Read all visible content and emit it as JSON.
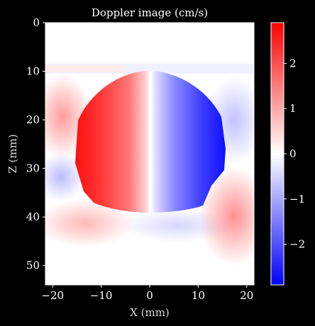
{
  "chart_data": {
    "type": "heatmap",
    "title": "Doppler image (cm/s)",
    "xlabel": "X (mm)",
    "ylabel": "Z (mm)",
    "xlim": [
      -21.5,
      21.5
    ],
    "ylim": [
      0,
      54
    ],
    "y_inverted": true,
    "xticks": [
      {
        "value": -20,
        "label": "−20"
      },
      {
        "value": -10,
        "label": "−10"
      },
      {
        "value": 0,
        "label": "0"
      },
      {
        "value": 10,
        "label": "10"
      },
      {
        "value": 20,
        "label": "20"
      }
    ],
    "yticks": [
      {
        "value": 0,
        "label": "0"
      },
      {
        "value": 10,
        "label": "10"
      },
      {
        "value": 20,
        "label": "20"
      },
      {
        "value": 30,
        "label": "30"
      },
      {
        "value": 40,
        "label": "40"
      },
      {
        "value": 50,
        "label": "50"
      }
    ],
    "colorbar": {
      "vmin": -2.9,
      "vmax": 2.9,
      "colormap": "bwr",
      "ticks": [
        {
          "value": 2,
          "label": "2"
        },
        {
          "value": 1,
          "label": "1"
        },
        {
          "value": 0,
          "label": "0"
        },
        {
          "value": -1,
          "label": "−1"
        },
        {
          "value": -2,
          "label": "−2"
        }
      ]
    },
    "grid": false,
    "regions": [
      {
        "name": "vessel-left-half",
        "x": [
          -15,
          0
        ],
        "z": [
          10,
          38
        ],
        "value_range": [
          2.9,
          0
        ]
      },
      {
        "name": "vessel-right-half",
        "x": [
          0,
          15
        ],
        "z": [
          10,
          38
        ],
        "value_range": [
          0,
          -2.9
        ]
      },
      {
        "name": "upper-left-tissue",
        "x": [
          -21,
          -13
        ],
        "z": [
          12,
          29
        ],
        "value": 0.9
      },
      {
        "name": "upper-right-tissue",
        "x": [
          12,
          21
        ],
        "z": [
          12,
          29
        ],
        "value": -0.7
      },
      {
        "name": "lower-left-tissue",
        "x": [
          -21,
          -8
        ],
        "z": [
          38,
          46
        ],
        "value": 0.8
      },
      {
        "name": "lower-right-tissue",
        "x": [
          11,
          21
        ],
        "z": [
          32,
          50
        ],
        "value": 1.2
      }
    ]
  },
  "colors": {
    "background": "#000000",
    "text": "#ffffff",
    "axis_label": "#d8d8d8",
    "negative": "#0000ff",
    "zero": "#ffffff",
    "positive": "#ff0000"
  }
}
